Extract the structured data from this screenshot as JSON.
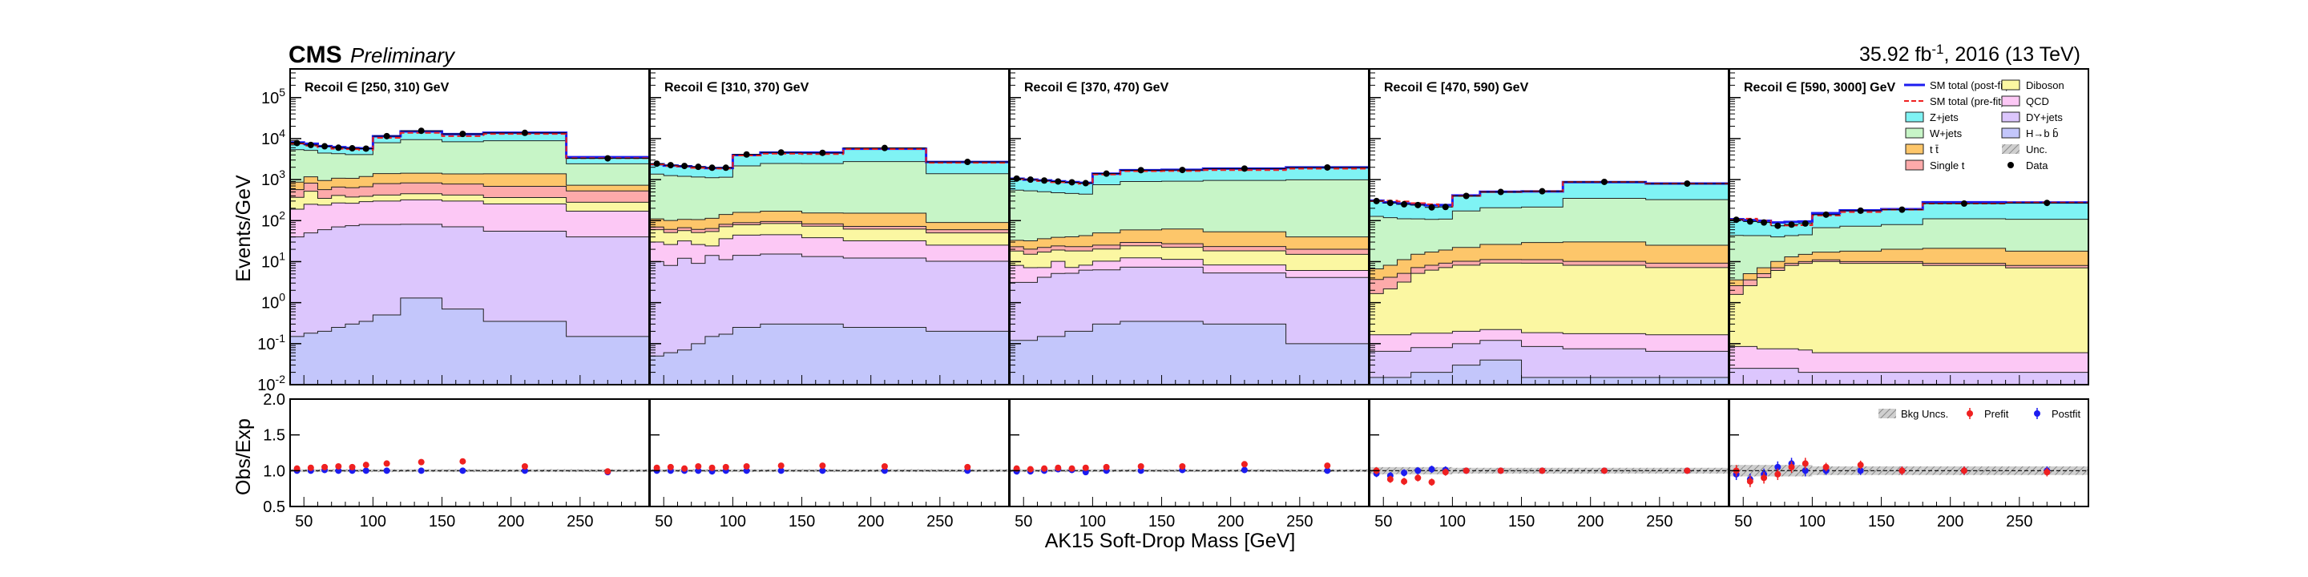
{
  "header": {
    "experiment": "CMS",
    "status": "Preliminary",
    "lumi_prefix": "35.92 fb",
    "lumi_sup": "-1",
    "lumi_suffix": ", 2016 (13 TeV)"
  },
  "colors": {
    "Z+jets": "#7ff3f4",
    "W+jets": "#c7f5c7",
    "ttbar": "#fdc66a",
    "Single t": "#fdaaaa",
    "Diboson": "#fbf7a2",
    "QCD": "#fcc8f5",
    "DY+jets": "#dcc6fd",
    "H->bb": "#c3c6fb",
    "post_fit": "#1c1cf0",
    "pre_fit": "#ef2020",
    "band": "#aaaaaa"
  },
  "chart_data": {
    "type": "area",
    "description_note": "Stacked histograms of AK15 soft-drop mass in five recoil bins with ratio panels",
    "xlabel": "AK15 Soft-Drop Mass [GeV]",
    "ylabel_top": "Events/GeV",
    "ylabel_ratio": "Obs/Exp",
    "xlim": [
      40,
      300
    ],
    "ylim_top": [
      0.01,
      500000
    ],
    "yscale_top": "log",
    "ylim_ratio": [
      0.5,
      2.0
    ],
    "x_ticks": [
      50,
      100,
      150,
      200,
      250
    ],
    "y_ticks_top": [
      {
        "m": "10",
        "e": "5",
        "v": 100000
      },
      {
        "m": "10",
        "e": "4",
        "v": 10000
      },
      {
        "m": "10",
        "e": "3",
        "v": 1000
      },
      {
        "m": "10",
        "e": "2",
        "v": 100
      },
      {
        "m": "10",
        "e": "1",
        "v": 10
      },
      {
        "m": "10",
        "e": "0",
        "v": 1
      },
      {
        "m": "10",
        "e": "-1",
        "v": 0.1
      },
      {
        "m": "10",
        "e": "-2",
        "v": 0.01
      }
    ],
    "y_ticks_ratio": [
      {
        "label": "2.0",
        "v": 2.0
      },
      {
        "label": "1.5",
        "v": 1.5
      },
      {
        "label": "1.0",
        "v": 1.0
      },
      {
        "label": "0.5",
        "v": 0.5
      }
    ],
    "bin_edges": [
      40,
      50,
      60,
      70,
      80,
      90,
      100,
      120,
      150,
      180,
      240,
      300
    ],
    "stack_order": [
      "H->bb",
      "DY+jets",
      "QCD",
      "Diboson",
      "Single t",
      "ttbar",
      "W+jets",
      "Z+jets"
    ],
    "legend": [
      {
        "key": "post_fit",
        "label": "SM total (post-fit)",
        "kind": "line"
      },
      {
        "key": "Diboson",
        "label": "Diboson",
        "kind": "box"
      },
      {
        "key": "pre_fit",
        "label": "SM total (pre-fit)",
        "kind": "dash"
      },
      {
        "key": "QCD",
        "label": "QCD",
        "kind": "box"
      },
      {
        "key": "Z+jets",
        "label": "Z+jets",
        "kind": "box"
      },
      {
        "key": "DY+jets",
        "label": "DY+jets",
        "kind": "box"
      },
      {
        "key": "W+jets",
        "label": "W+jets",
        "kind": "box"
      },
      {
        "key": "H->bb",
        "label": "H→b b̄",
        "kind": "box"
      },
      {
        "key": "ttbar",
        "label": "t t̄",
        "kind": "box"
      },
      {
        "key": "band",
        "label": "Unc.",
        "kind": "hatch"
      },
      {
        "key": "Single t",
        "label": "Single t",
        "kind": "box"
      },
      {
        "key": "data",
        "label": "Data",
        "kind": "dot"
      }
    ],
    "ratio_legend": [
      {
        "key": "band",
        "label": "Bkg Uncs.",
        "kind": "hatch"
      },
      {
        "key": "pre_fit",
        "label": "Prefit",
        "kind": "dot"
      },
      {
        "key": "post_fit",
        "label": "Postfit",
        "kind": "dot"
      }
    ],
    "panels": [
      {
        "title": "Recoil ∈ [250, 310) GeV",
        "stack": {
          "H->bb": [
            0.15,
            0.18,
            0.2,
            0.25,
            0.3,
            0.35,
            0.5,
            1.3,
            0.7,
            0.35,
            0.15
          ],
          "DY+jets": [
            40,
            50,
            60,
            70,
            75,
            80,
            80,
            80,
            70,
            55,
            40
          ],
          "QCD": [
            150,
            200,
            180,
            200,
            190,
            210,
            220,
            240,
            230,
            200,
            130
          ],
          "Diboson": [
            180,
            270,
            110,
            140,
            110,
            100,
            120,
            130,
            120,
            110,
            110
          ],
          "Single t": [
            200,
            300,
            220,
            250,
            260,
            280,
            380,
            380,
            360,
            320,
            250
          ],
          "ttbar": [
            300,
            350,
            380,
            420,
            440,
            520,
            600,
            600,
            600,
            700,
            200
          ],
          "W+jets": [
            4500,
            4000,
            3500,
            3200,
            3000,
            2900,
            6500,
            8000,
            7000,
            7500,
            1700
          ],
          "Z+jets": [
            2700,
            2300,
            2100,
            1900,
            1800,
            1700,
            3500,
            5500,
            4500,
            5000,
            1100
          ]
        },
        "data": [
          7800,
          7000,
          6500,
          6000,
          5800,
          5700,
          11500,
          15500,
          13000,
          13800,
          3300
        ],
        "ratio_prefit": [
          1.03,
          1.04,
          1.05,
          1.06,
          1.05,
          1.08,
          1.1,
          1.12,
          1.13,
          1.06,
          0.99
        ],
        "ratio_postfit": [
          1.0,
          1.0,
          1.01,
          1.0,
          1.0,
          1.0,
          1.0,
          1.0,
          1.0,
          1.0,
          0.98
        ],
        "ratio_err_post": [
          0.02,
          0.02,
          0.02,
          0.02,
          0.02,
          0.02,
          0.02,
          0.02,
          0.02,
          0.02,
          0.02
        ],
        "band": [
          0.02,
          0.02,
          0.02,
          0.02,
          0.02,
          0.02,
          0.02,
          0.02,
          0.02,
          0.02,
          0.02
        ]
      },
      {
        "title": "Recoil ∈ [310, 370) GeV",
        "stack": {
          "H->bb": [
            0.05,
            0.06,
            0.07,
            0.1,
            0.15,
            0.17,
            0.25,
            0.3,
            0.3,
            0.25,
            0.2
          ],
          "DY+jets": [
            10,
            8,
            12,
            9,
            14,
            11,
            14,
            15,
            13,
            12,
            10
          ],
          "QCD": [
            20,
            18,
            20,
            17,
            10,
            25,
            30,
            30,
            25,
            20,
            15
          ],
          "Diboson": [
            30,
            25,
            25,
            25,
            30,
            35,
            35,
            40,
            35,
            30,
            25
          ],
          "Single t": [
            10,
            10,
            10,
            10,
            10,
            10,
            10,
            10,
            10,
            10,
            10
          ],
          "ttbar": [
            40,
            40,
            40,
            45,
            50,
            60,
            70,
            75,
            70,
            80,
            30
          ],
          "W+jets": [
            1250,
            1150,
            1100,
            1050,
            1000,
            1000,
            2000,
            2300,
            2300,
            2600,
            1300
          ],
          "Z+jets": [
            1000,
            950,
            900,
            850,
            800,
            780,
            1800,
            2100,
            2100,
            2900,
            1300
          ]
        },
        "data": [
          2450,
          2250,
          2150,
          2050,
          1950,
          1950,
          4100,
          4600,
          4500,
          5900,
          2700
        ],
        "ratio_prefit": [
          1.04,
          1.05,
          1.03,
          1.06,
          1.04,
          1.05,
          1.06,
          1.07,
          1.07,
          1.06,
          1.05
        ],
        "ratio_postfit": [
          1.0,
          1.0,
          1.0,
          1.0,
          0.99,
          1.0,
          1.0,
          1.0,
          1.0,
          1.0,
          1.0
        ],
        "ratio_err_post": [
          0.02,
          0.02,
          0.02,
          0.02,
          0.02,
          0.02,
          0.02,
          0.02,
          0.02,
          0.02,
          0.02
        ],
        "band": [
          0.02,
          0.02,
          0.02,
          0.02,
          0.02,
          0.02,
          0.02,
          0.02,
          0.02,
          0.02,
          0.02
        ]
      },
      {
        "title": "Recoil ∈ [370, 470) GeV",
        "stack": {
          "H->bb": [
            0.12,
            0.12,
            0.15,
            0.15,
            0.2,
            0.2,
            0.3,
            0.35,
            0.35,
            0.3,
            0.1
          ],
          "DY+jets": [
            3,
            3,
            4,
            5,
            5,
            6,
            6,
            7,
            7,
            5,
            4
          ],
          "QCD": [
            5,
            4,
            3,
            5,
            2,
            2,
            4,
            5,
            4,
            3,
            2
          ],
          "Diboson": [
            10,
            8,
            10,
            9,
            11,
            10,
            10,
            12,
            11,
            10,
            9
          ],
          "Single t": [
            5,
            5,
            5,
            5,
            5,
            5,
            5,
            5,
            5,
            5,
            5
          ],
          "ttbar": [
            10,
            12,
            14,
            15,
            17,
            20,
            25,
            30,
            35,
            30,
            20
          ],
          "W+jets": [
            520,
            500,
            470,
            440,
            420,
            400,
            700,
            840,
            850,
            900,
            950
          ],
          "Z+jets": [
            500,
            470,
            450,
            430,
            410,
            390,
            640,
            800,
            820,
            900,
            1000
          ]
        },
        "data": [
          1060,
          1000,
          950,
          900,
          860,
          820,
          1400,
          1700,
          1720,
          1860,
          1980
        ],
        "ratio_prefit": [
          1.03,
          1.02,
          1.03,
          1.04,
          1.03,
          1.04,
          1.05,
          1.06,
          1.06,
          1.09,
          1.07
        ],
        "ratio_postfit": [
          0.99,
          0.99,
          1.0,
          1.02,
          1.01,
          0.98,
          1.0,
          1.0,
          1.01,
          1.01,
          1.0
        ],
        "ratio_err_post": [
          0.03,
          0.03,
          0.03,
          0.03,
          0.03,
          0.03,
          0.03,
          0.03,
          0.03,
          0.03,
          0.03
        ],
        "band": [
          0.02,
          0.02,
          0.02,
          0.02,
          0.02,
          0.02,
          0.02,
          0.02,
          0.02,
          0.02,
          0.02
        ]
      },
      {
        "title": "Recoil ∈ [470, 590) GeV",
        "stack": {
          "H->bb": [
            0.015,
            0.015,
            0.015,
            0.02,
            0.02,
            0.02,
            0.03,
            0.04,
            0.015,
            0.015,
            0.015
          ],
          "DY+jets": [
            0.05,
            0.05,
            0.05,
            0.06,
            0.06,
            0.06,
            0.07,
            0.08,
            0.07,
            0.06,
            0.05
          ],
          "QCD": [
            0.1,
            0.1,
            0.1,
            0.1,
            0.1,
            0.1,
            0.1,
            0.1,
            0.1,
            0.1,
            0.1
          ],
          "Diboson": [
            1.5,
            2,
            3,
            5,
            6,
            7,
            8,
            9,
            9,
            8,
            7
          ],
          "Single t": [
            2,
            2,
            2,
            2,
            2,
            2,
            2,
            2,
            2,
            2,
            2
          ],
          "ttbar": [
            3,
            4,
            6,
            8,
            9,
            10,
            12,
            15,
            18,
            20,
            16
          ],
          "W+jets": [
            120,
            110,
            100,
            95,
            90,
            90,
            150,
            180,
            185,
            320,
            300
          ],
          "Z+jets": [
            180,
            160,
            150,
            140,
            130,
            130,
            240,
            300,
            300,
            520,
            480
          ]
        },
        "data": [
          300,
          270,
          250,
          240,
          210,
          215,
          400,
          500,
          520,
          880,
          800
        ],
        "ratio_prefit": [
          1.0,
          0.88,
          0.85,
          0.9,
          0.84,
          0.98,
          1.0,
          1.0,
          1.0,
          1.0,
          1.0
        ],
        "ratio_postfit": [
          0.96,
          0.93,
          0.97,
          1.0,
          1.02,
          1.01,
          1.0,
          1.0,
          1.0,
          1.0,
          1.0
        ],
        "ratio_err_post": [
          0.05,
          0.05,
          0.05,
          0.05,
          0.05,
          0.05,
          0.04,
          0.04,
          0.04,
          0.04,
          0.04
        ],
        "band": [
          0.05,
          0.05,
          0.05,
          0.05,
          0.05,
          0.05,
          0.04,
          0.04,
          0.04,
          0.04,
          0.04
        ]
      },
      {
        "title": "Recoil ∈ [590, 3000] GeV",
        "stack": {
          "H->bb": [
            0.005,
            0.005,
            0.005,
            0.005,
            0.005,
            0.005,
            0.005,
            0.005,
            0.005,
            0.005,
            0.005
          ],
          "DY+jets": [
            0.02,
            0.02,
            0.02,
            0.02,
            0.02,
            0.015,
            0.015,
            0.015,
            0.015,
            0.015,
            0.015
          ],
          "QCD": [
            0.06,
            0.06,
            0.05,
            0.05,
            0.05,
            0.05,
            0.04,
            0.04,
            0.04,
            0.04,
            0.04
          ],
          "Diboson": [
            1.5,
            2.5,
            4,
            6,
            8,
            9,
            10,
            9,
            9,
            8,
            7
          ],
          "Single t": [
            1,
            1,
            1,
            1,
            1,
            1,
            1,
            1,
            1,
            1,
            1
          ],
          "ttbar": [
            1,
            1.5,
            2,
            3,
            4,
            5,
            6,
            8,
            10,
            12,
            10
          ],
          "W+jets": [
            40,
            38,
            36,
            30,
            30,
            30,
            50,
            55,
            60,
            90,
            90
          ],
          "Z+jets": [
            65,
            60,
            56,
            50,
            50,
            50,
            85,
            105,
            110,
            170,
            170
          ]
        },
        "data": [
          105,
          95,
          90,
          75,
          80,
          85,
          140,
          175,
          185,
          260,
          270
        ],
        "ratio_prefit": [
          1.0,
          0.85,
          0.9,
          0.95,
          1.05,
          1.1,
          1.05,
          1.08,
          1.0,
          1.0,
          0.98
        ],
        "ratio_postfit": [
          0.95,
          0.88,
          0.95,
          1.05,
          1.1,
          1.0,
          1.0,
          1.0,
          1.0,
          1.0,
          1.0
        ],
        "ratio_err_post": [
          0.08,
          0.08,
          0.08,
          0.08,
          0.08,
          0.08,
          0.06,
          0.06,
          0.06,
          0.06,
          0.06
        ],
        "band": [
          0.08,
          0.08,
          0.08,
          0.08,
          0.08,
          0.08,
          0.06,
          0.06,
          0.06,
          0.06,
          0.06
        ]
      }
    ]
  }
}
